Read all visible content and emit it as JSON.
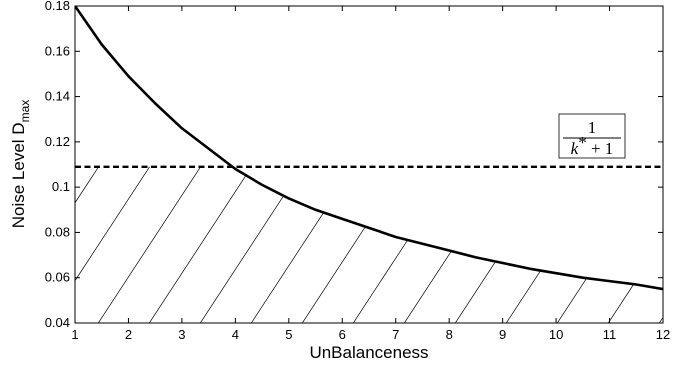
{
  "chart_data": {
    "type": "line",
    "title": "",
    "xlabel": "UnBalanceness",
    "ylabel": "Noise Level D",
    "ylabel_subscript": "max",
    "xlim": [
      1,
      12
    ],
    "ylim": [
      0.04,
      0.18
    ],
    "xticks": [
      1,
      2,
      3,
      4,
      5,
      6,
      7,
      8,
      9,
      10,
      11,
      12
    ],
    "yticks": [
      0.04,
      0.06,
      0.08,
      0.1,
      0.12,
      0.14,
      0.16,
      0.18
    ],
    "grid": false,
    "legend": "none",
    "series": [
      {
        "style": "solid",
        "x": [
          1,
          1.5,
          2,
          2.5,
          3,
          3.5,
          4,
          4.5,
          5,
          5.5,
          6,
          6.5,
          7,
          7.5,
          8,
          8.5,
          9,
          9.5,
          10,
          10.5,
          11,
          11.5,
          12
        ],
        "y": [
          0.18,
          0.163,
          0.149,
          0.137,
          0.126,
          0.117,
          0.108,
          0.101,
          0.095,
          0.09,
          0.086,
          0.082,
          0.078,
          0.075,
          0.072,
          0.069,
          0.0665,
          0.064,
          0.062,
          0.06,
          0.0585,
          0.057,
          0.055
        ]
      },
      {
        "style": "dashed",
        "x": [
          1,
          12
        ],
        "y": [
          0.109,
          0.109
        ]
      }
    ],
    "annotation": {
      "numerator": "1",
      "denominator_var": "k",
      "denominator_sup": "*",
      "denominator_rest": " + 1",
      "x": 11,
      "y": 0.118
    },
    "hatched_region": "below min(curve, dashed line)"
  }
}
